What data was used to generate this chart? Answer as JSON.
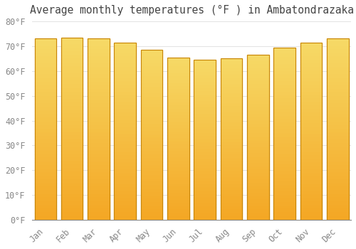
{
  "title": "Average monthly temperatures (°F ) in Ambatondrazaka",
  "months": [
    "Jan",
    "Feb",
    "Mar",
    "Apr",
    "May",
    "Jun",
    "Jul",
    "Aug",
    "Sep",
    "Oct",
    "Nov",
    "Dec"
  ],
  "values": [
    73.0,
    73.5,
    73.0,
    71.5,
    68.5,
    65.5,
    64.5,
    65.0,
    66.5,
    69.5,
    71.5,
    73.0
  ],
  "bar_color_bottom": "#F5A623",
  "bar_color_top": "#FFD966",
  "bar_edge_color": "#C8860A",
  "ylim": [
    0,
    80
  ],
  "yticks": [
    0,
    10,
    20,
    30,
    40,
    50,
    60,
    70,
    80
  ],
  "ytick_labels": [
    "0°F",
    "10°F",
    "20°F",
    "30°F",
    "40°F",
    "50°F",
    "60°F",
    "70°F",
    "80°F"
  ],
  "background_color": "#FFFFFF",
  "grid_color": "#DDDDDD",
  "title_fontsize": 10.5,
  "tick_fontsize": 8.5,
  "bar_width": 0.82
}
